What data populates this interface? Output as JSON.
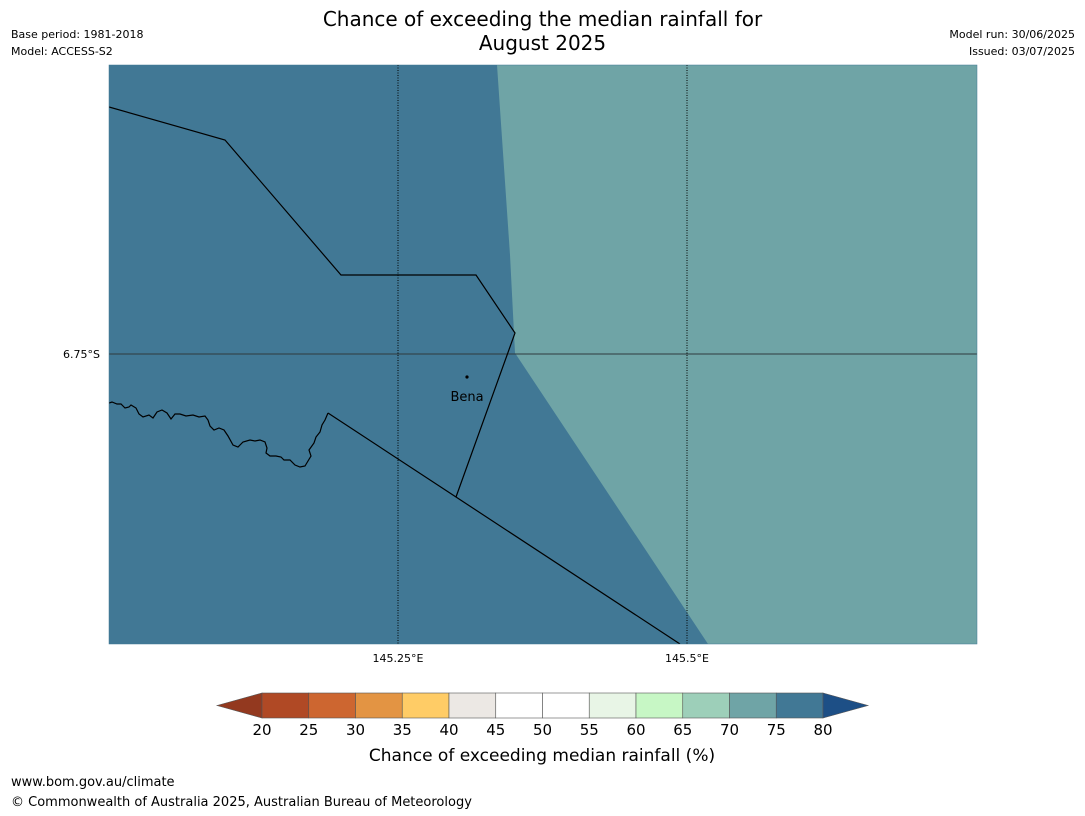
{
  "title": {
    "line1": "Chance of exceeding the median rainfall for",
    "line2": "August 2025"
  },
  "meta": {
    "base_period": "Base period: 1981-2018",
    "model": "Model: ACCESS-S2",
    "model_run": "Model run: 30/06/2025",
    "issued": "Issued: 03/07/2025"
  },
  "map": {
    "lat_labels": [
      "6.75°S"
    ],
    "lon_labels": [
      "145.25°E",
      "145.5°E"
    ],
    "places": [
      {
        "name": "Bena"
      }
    ],
    "region_colors": {
      "dark": "#417895",
      "light": "#6fa4a6"
    }
  },
  "colorbar": {
    "ticks": [
      "20",
      "25",
      "30",
      "35",
      "40",
      "45",
      "50",
      "55",
      "60",
      "65",
      "70",
      "75",
      "80"
    ],
    "bin_colors": [
      "#b04925",
      "#cd6630",
      "#e39443",
      "#ffcc66",
      "#ece8e4",
      "#ffffff",
      "#ffffff",
      "#e8f5e6",
      "#c7f7c5",
      "#9dcfb9",
      "#6fa4a6",
      "#417895"
    ],
    "under_color": "#93391f",
    "over_color": "#1d4f86",
    "caption": "Chance of exceeding median rainfall (%)"
  },
  "footer": {
    "url": "www.bom.gov.au/climate",
    "copyright": "© Commonwealth of Australia 2025, Australian Bureau of Meteorology"
  }
}
